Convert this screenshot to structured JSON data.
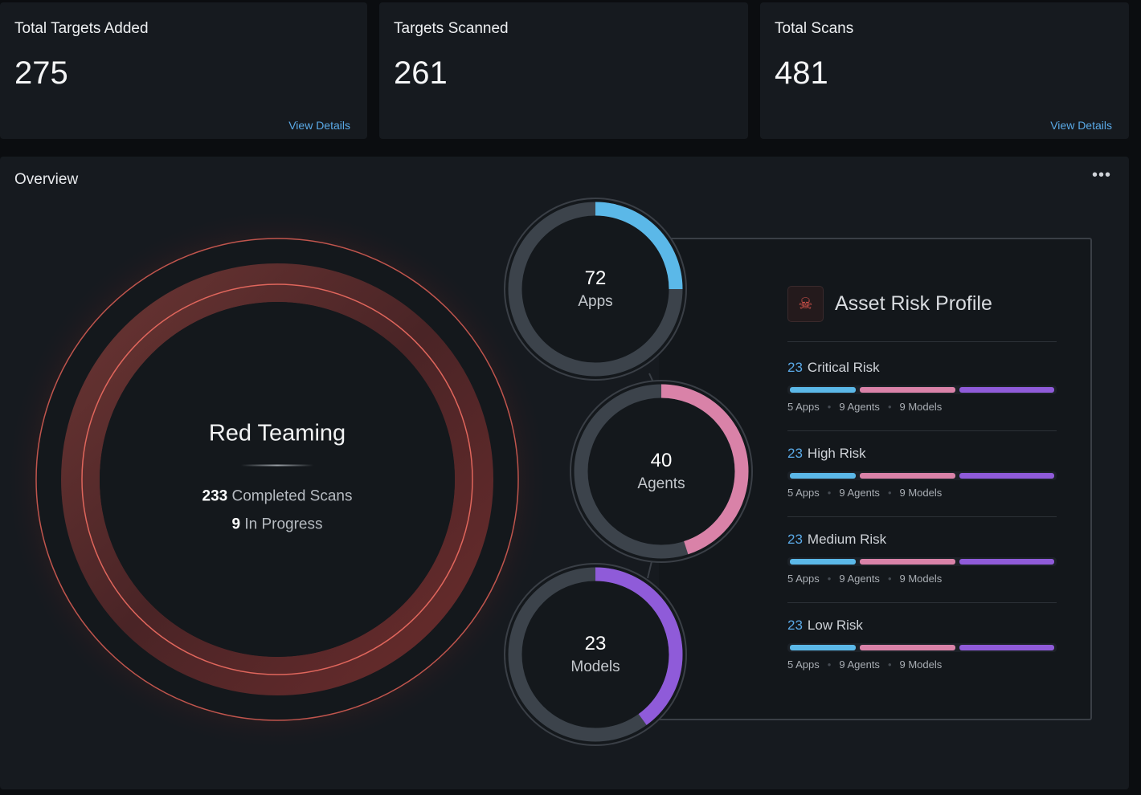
{
  "cards": [
    {
      "title": "Total Targets Added",
      "value": "275",
      "link": "View Details"
    },
    {
      "title": "Targets Scanned",
      "value": "261"
    },
    {
      "title": "Total Scans",
      "value": "481",
      "link": "View Details"
    }
  ],
  "overview": {
    "title": "Overview",
    "more_icon": "ellipsis-icon",
    "more_label": "•••",
    "red_teaming": {
      "title": "Red Teaming",
      "completed": "233",
      "completed_label": "Completed Scans",
      "in_progress": "9",
      "in_progress_label": "In Progress",
      "color": "#e0574f"
    },
    "rings": [
      {
        "value": "72",
        "label": "Apps",
        "fill": 0.25,
        "color": "#5bb8e8"
      },
      {
        "value": "40",
        "label": "Agents",
        "fill": 0.45,
        "color": "#d982a8"
      },
      {
        "value": "23",
        "label": "Models",
        "fill": 0.4,
        "color": "#8f5bd9"
      }
    ],
    "risk_profile": {
      "title": "Asset Risk Profile",
      "icon": "skull-crossbones-icon",
      "levels": [
        {
          "count": "23",
          "label": "Critical Risk",
          "apps": "5 Apps",
          "agents": "9 Agents",
          "models": "9 Models"
        },
        {
          "count": "23",
          "label": "High Risk",
          "apps": "5 Apps",
          "agents": "9 Agents",
          "models": "9 Models"
        },
        {
          "count": "23",
          "label": "Medium Risk",
          "apps": "5 Apps",
          "agents": "9 Agents",
          "models": "9 Models"
        },
        {
          "count": "23",
          "label": "Low Risk",
          "apps": "5 Apps",
          "agents": "9 Agents",
          "models": "9 Models"
        }
      ],
      "colors": {
        "apps": "#5bb8e8",
        "agents": "#d982a8",
        "models": "#8f5bd9",
        "count": "#5aa9e6"
      }
    }
  }
}
